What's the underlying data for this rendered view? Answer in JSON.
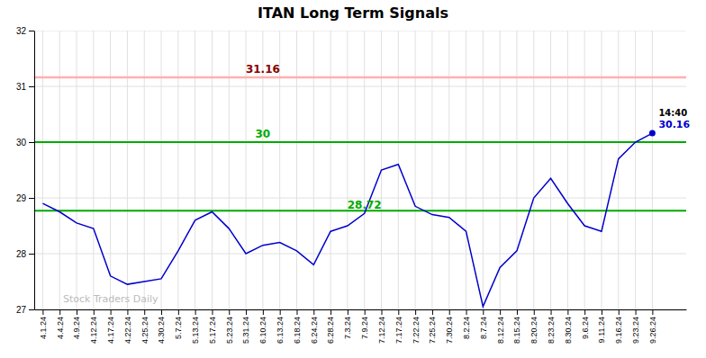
{
  "chart_data": {
    "type": "line",
    "title": "ITAN Long Term Signals",
    "categories": [
      "4.1.24",
      "4.4.24",
      "4.9.24",
      "4.12.24",
      "4.17.24",
      "4.22.24",
      "4.25.24",
      "4.30.24",
      "5.7.24",
      "5.13.24",
      "5.17.24",
      "5.23.24",
      "5.31.24",
      "6.10.24",
      "6.13.24",
      "6.18.24",
      "6.24.24",
      "6.28.24",
      "7.3.24",
      "7.9.24",
      "7.12.24",
      "7.17.24",
      "7.22.24",
      "7.25.24",
      "7.30.24",
      "8.2.24",
      "8.7.24",
      "8.12.24",
      "8.15.24",
      "8.20.24",
      "8.23.24",
      "8.30.24",
      "9.6.24",
      "9.11.24",
      "9.16.24",
      "9.23.24",
      "9.26.24"
    ],
    "values": [
      28.9,
      28.75,
      28.55,
      28.45,
      27.6,
      27.45,
      27.5,
      27.55,
      28.05,
      28.6,
      28.75,
      28.45,
      28.0,
      28.15,
      28.2,
      28.05,
      27.8,
      28.4,
      28.5,
      28.72,
      29.5,
      29.6,
      28.85,
      28.7,
      28.65,
      28.4,
      27.05,
      27.75,
      28.05,
      29.0,
      29.35,
      28.9,
      28.5,
      28.4,
      29.7,
      30.0,
      30.16
    ],
    "color": "#0000cc",
    "ylim": [
      27.0,
      32.0
    ],
    "yticks": [
      27,
      28,
      29,
      30,
      31,
      32
    ],
    "grid": true,
    "reference_lines": [
      {
        "value": 31.16,
        "color": "#ffb0b0"
      },
      {
        "value": 30.0,
        "color": "#00aa00"
      },
      {
        "value": 28.77,
        "color": "#00aa00"
      }
    ],
    "annotations": [
      {
        "text": "31.16",
        "value": 31.16,
        "category": "6.10.24",
        "color": "#880000"
      },
      {
        "text": "30",
        "value": 30.0,
        "category": "6.10.24",
        "color": "#00aa00"
      },
      {
        "text": "28.72",
        "value": 28.72,
        "category": "7.9.24",
        "color": "#00aa00"
      }
    ],
    "last_point_labels": [
      {
        "text": "14:40"
      },
      {
        "text": "30.16",
        "value": 30.16,
        "color": "#0000cc"
      }
    ],
    "watermark": "Stock Traders Daily"
  }
}
